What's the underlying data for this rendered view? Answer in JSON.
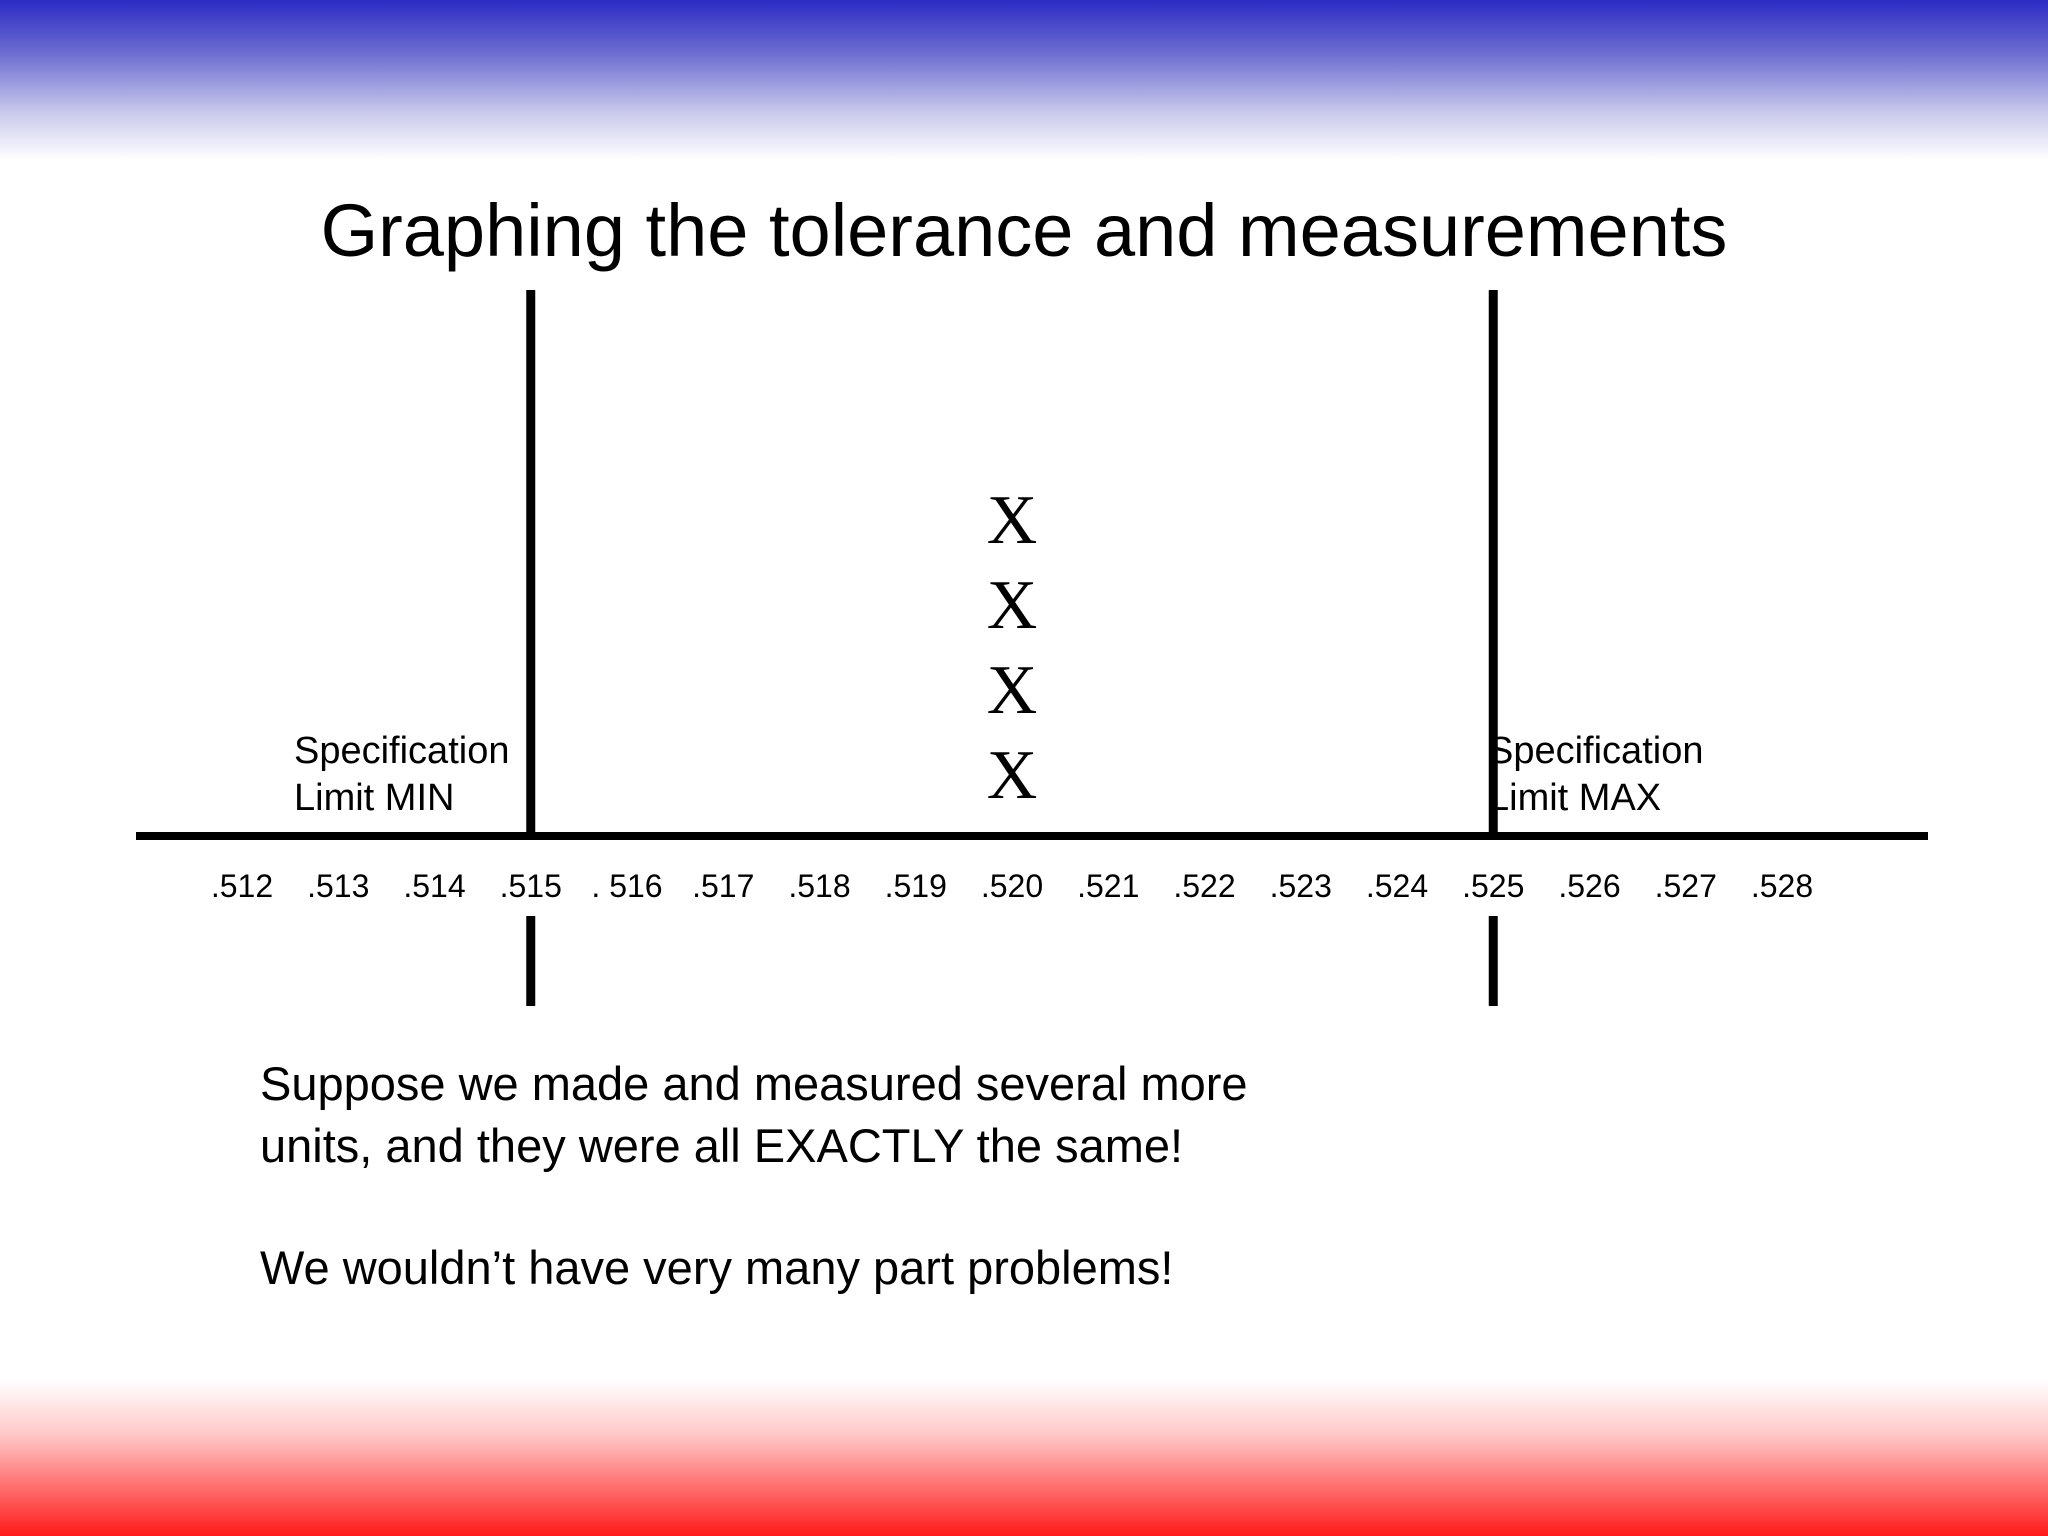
{
  "title": "Graphing the tolerance and measurements",
  "spec_min": {
    "line1": "Specification",
    "line2": "Limit MIN"
  },
  "spec_max": {
    "line1": "Specification",
    "line2": "Limit MAX"
  },
  "paragraph1": {
    "line1": "Suppose we made and measured several more",
    "line2": "units, and they were all EXACTLY the same!"
  },
  "paragraph2": "We wouldn’t have very many part problems!",
  "chart_data": {
    "type": "scatter",
    "x_ticks": [
      ".512",
      ".513",
      ".514",
      ".515",
      ". 516",
      ".517",
      ".518",
      ".519",
      ".520",
      ".521",
      ".522",
      ".523",
      ".524",
      ".525",
      ".526",
      ".527",
      ".528"
    ],
    "xlim": [
      0.512,
      0.528
    ],
    "spec_limit_min": 0.515,
    "spec_limit_max": 0.525,
    "marker": "X",
    "points": [
      {
        "x": 0.52,
        "count_index": 1
      },
      {
        "x": 0.52,
        "count_index": 2
      },
      {
        "x": 0.52,
        "count_index": 3
      },
      {
        "x": 0.52,
        "count_index": 4
      }
    ]
  },
  "colors": {
    "top_band": "#2b2bc4",
    "bottom_band": "#ff1a1a",
    "ink": "#000000"
  }
}
